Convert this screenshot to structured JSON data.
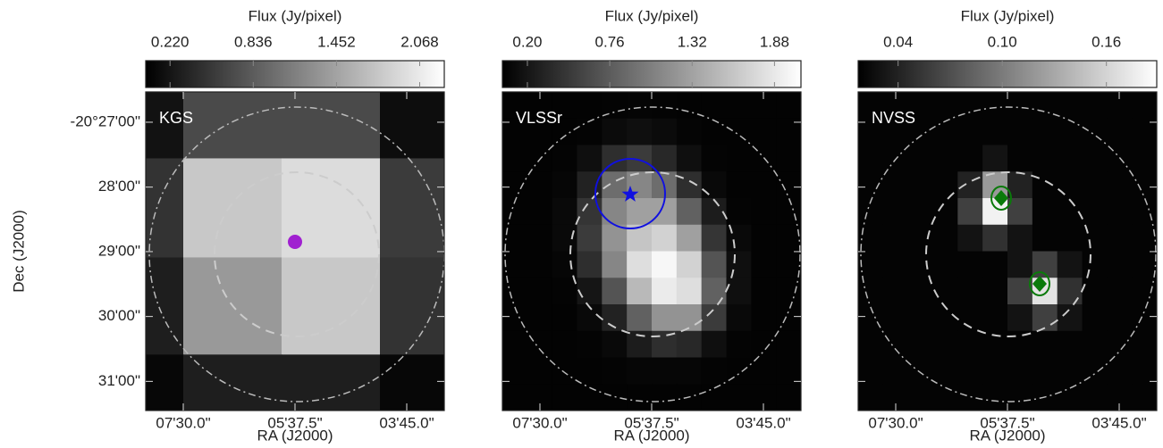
{
  "chart_data": [
    {
      "type": "image",
      "label": "KGS",
      "colorbar_label": "Flux (Jy/pixel)",
      "xlabel": "RA (J2000)",
      "ylabel": "Dec (J2000)",
      "clim": [
        0.04,
        2.25
      ],
      "cticks": [
        {
          "value": 0.22,
          "label": "0.220"
        },
        0.836,
        1.452,
        2.068
      ],
      "xlim": [
        487.8,
        187.2
      ],
      "xticks": [
        {
          "value": 450,
          "label": "07'30.0\""
        },
        {
          "value": 337.5,
          "label": "05'37.5\""
        },
        {
          "value": 225,
          "label": "03'45.0\""
        }
      ],
      "ylim": [
        -20.5242,
        -20.4422
      ],
      "yticks": [
        {
          "value": -20.45,
          "label": "-20°27'00\""
        },
        {
          "value": -20.4667,
          "label": "28'00\""
        },
        {
          "value": -20.4833,
          "label": "29'00\""
        },
        {
          "value": -20.5,
          "label": "30'00\""
        },
        {
          "value": -20.5167,
          "label": "31'00\""
        }
      ],
      "x_edges": [
        487.8,
        450,
        351,
        252,
        187.2
      ],
      "y_edges": [
        -20.4422,
        -20.4593,
        -20.4848,
        -20.5098,
        -20.5242
      ],
      "z": [
        [
          0.2,
          0.68,
          0.68,
          0.15
        ],
        [
          0.48,
          1.77,
          1.95,
          0.55
        ],
        [
          0.3,
          1.37,
          1.77,
          0.48
        ],
        [
          0.1,
          0.3,
          0.3,
          0.1
        ]
      ]
    },
    {
      "type": "image",
      "label": "VLSSr",
      "colorbar_label": "Flux (Jy/pixel)",
      "xlabel": "RA (J2000)",
      "clim": [
        0.03,
        2.06
      ],
      "cticks": [
        {
          "value": 0.2,
          "label": "0.20"
        },
        0.76,
        1.32,
        1.88
      ],
      "xlim": [
        487.8,
        187.2
      ],
      "xticks": [
        {
          "value": 450,
          "label": "07'30.0\""
        },
        {
          "value": 337.5,
          "label": "05'37.5\""
        },
        {
          "value": 225,
          "label": "03'45.0\""
        }
      ],
      "ylim": [
        -20.5242,
        -20.4422
      ],
      "z": [
        [
          0.05,
          0.05,
          0.05,
          0.05,
          0.06,
          0.07,
          0.06,
          0.05,
          0.05,
          0.05,
          0.05,
          0.05
        ],
        [
          0.05,
          0.05,
          0.05,
          0.06,
          0.12,
          0.15,
          0.12,
          0.07,
          0.05,
          0.05,
          0.05,
          0.05
        ],
        [
          0.05,
          0.05,
          0.06,
          0.15,
          0.4,
          0.5,
          0.35,
          0.15,
          0.06,
          0.05,
          0.05,
          0.05
        ],
        [
          0.05,
          0.05,
          0.08,
          0.3,
          0.9,
          1.1,
          0.9,
          0.4,
          0.1,
          0.05,
          0.05,
          0.05
        ],
        [
          0.05,
          0.05,
          0.1,
          0.45,
          1.1,
          1.3,
          1.3,
          0.8,
          0.25,
          0.06,
          0.05,
          0.05
        ],
        [
          0.05,
          0.05,
          0.1,
          0.5,
          1.2,
          1.6,
          1.7,
          1.3,
          0.45,
          0.1,
          0.05,
          0.05
        ],
        [
          0.05,
          0.05,
          0.08,
          0.4,
          1.1,
          1.8,
          2.0,
          1.7,
          0.7,
          0.15,
          0.05,
          0.05
        ],
        [
          0.05,
          0.05,
          0.06,
          0.2,
          0.7,
          1.5,
          1.9,
          1.8,
          0.8,
          0.15,
          0.05,
          0.05
        ],
        [
          0.05,
          0.05,
          0.05,
          0.1,
          0.3,
          0.8,
          1.2,
          1.2,
          0.5,
          0.1,
          0.05,
          0.05
        ],
        [
          0.05,
          0.05,
          0.05,
          0.06,
          0.1,
          0.25,
          0.4,
          0.35,
          0.15,
          0.06,
          0.05,
          0.05
        ],
        [
          0.05,
          0.05,
          0.05,
          0.05,
          0.06,
          0.08,
          0.08,
          0.08,
          0.06,
          0.05,
          0.05,
          0.05
        ],
        [
          0.05,
          0.05,
          0.05,
          0.05,
          0.05,
          0.05,
          0.05,
          0.05,
          0.05,
          0.05,
          0.05,
          0.05
        ]
      ]
    },
    {
      "type": "image",
      "label": "NVSS",
      "colorbar_label": "Flux (Jy/pixel)",
      "xlabel": "RA (J2000)",
      "clim": [
        0.017,
        0.189
      ],
      "cticks": [
        0.04,
        {
          "value": 0.1,
          "label": "0.10"
        },
        0.16
      ],
      "xlim": [
        487.8,
        187.2
      ],
      "xticks": [
        {
          "value": 450,
          "label": "07'30.0\""
        },
        {
          "value": 337.5,
          "label": "05'37.5\""
        },
        {
          "value": 225,
          "label": "03'45.0\""
        }
      ],
      "ylim": [
        -20.5242,
        -20.4422
      ],
      "z": [
        [
          0.02,
          0.02,
          0.02,
          0.02,
          0.02,
          0.02,
          0.02,
          0.02,
          0.02,
          0.02,
          0.02,
          0.02
        ],
        [
          0.02,
          0.02,
          0.02,
          0.02,
          0.02,
          0.02,
          0.02,
          0.02,
          0.02,
          0.02,
          0.02,
          0.02
        ],
        [
          0.02,
          0.02,
          0.02,
          0.02,
          0.02,
          0.03,
          0.02,
          0.02,
          0.02,
          0.02,
          0.02,
          0.02
        ],
        [
          0.02,
          0.02,
          0.02,
          0.02,
          0.04,
          0.12,
          0.04,
          0.02,
          0.02,
          0.02,
          0.02,
          0.02
        ],
        [
          0.02,
          0.02,
          0.02,
          0.02,
          0.06,
          0.18,
          0.06,
          0.02,
          0.02,
          0.02,
          0.02,
          0.02
        ],
        [
          0.02,
          0.02,
          0.02,
          0.02,
          0.03,
          0.05,
          0.03,
          0.02,
          0.02,
          0.02,
          0.02,
          0.02
        ],
        [
          0.02,
          0.02,
          0.02,
          0.02,
          0.02,
          0.02,
          0.03,
          0.06,
          0.03,
          0.02,
          0.02,
          0.02
        ],
        [
          0.02,
          0.02,
          0.02,
          0.02,
          0.02,
          0.02,
          0.06,
          0.17,
          0.05,
          0.02,
          0.02,
          0.02
        ],
        [
          0.02,
          0.02,
          0.02,
          0.02,
          0.02,
          0.02,
          0.03,
          0.06,
          0.03,
          0.02,
          0.02,
          0.02
        ],
        [
          0.02,
          0.02,
          0.02,
          0.02,
          0.02,
          0.02,
          0.02,
          0.02,
          0.02,
          0.02,
          0.02,
          0.02
        ],
        [
          0.02,
          0.02,
          0.02,
          0.02,
          0.02,
          0.02,
          0.02,
          0.02,
          0.02,
          0.02,
          0.02,
          0.02
        ],
        [
          0.02,
          0.02,
          0.02,
          0.02,
          0.02,
          0.02,
          0.02,
          0.02,
          0.02,
          0.02,
          0.02,
          0.02
        ]
      ]
    }
  ]
}
